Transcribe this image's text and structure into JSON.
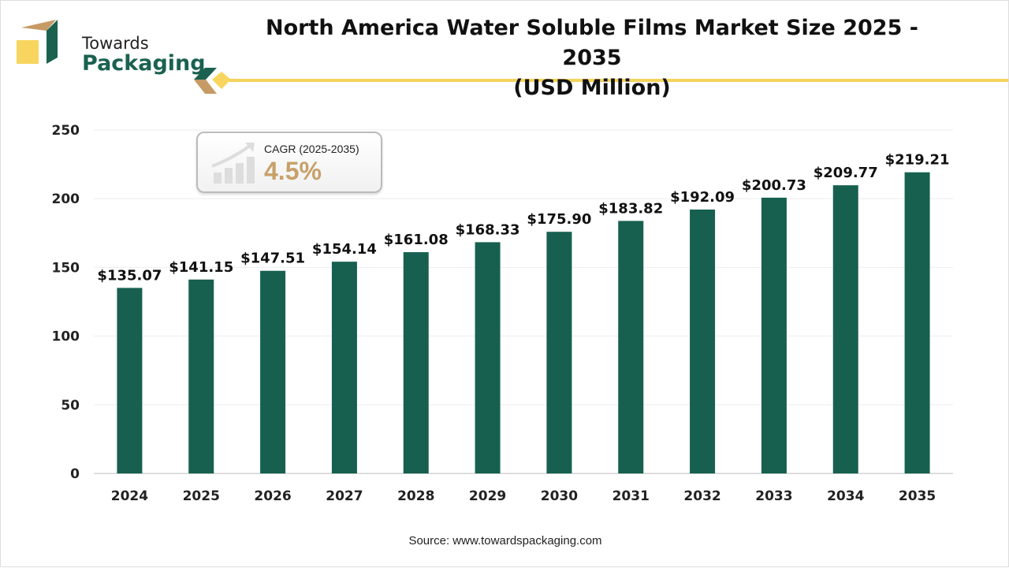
{
  "brand": {
    "line1": "Towards",
    "line2": "Packaging"
  },
  "title_line1": "North America Water Soluble Films Market Size 2025 - 2035",
  "title_line2": "(USD Million)",
  "cagr": {
    "label": "CAGR (2025-2035)",
    "value": "4.5%",
    "icon": "growth-chart-icon"
  },
  "source": "Source: www.towardspackaging.com",
  "colors": {
    "bar": "#17604f",
    "accent": "#f5d35d",
    "cagr_value": "#c8a06a"
  },
  "chart_data": {
    "type": "bar",
    "categories": [
      "2024",
      "2025",
      "2026",
      "2027",
      "2028",
      "2029",
      "2030",
      "2031",
      "2032",
      "2033",
      "2034",
      "2035"
    ],
    "values": [
      135.07,
      141.15,
      147.51,
      154.14,
      161.08,
      168.33,
      175.9,
      183.82,
      192.09,
      200.73,
      209.77,
      219.21
    ],
    "data_labels": [
      "$135.07",
      "$141.15",
      "$147.51",
      "$154.14",
      "$161.08",
      "$168.33",
      "$175.90",
      "$183.82",
      "$192.09",
      "$200.73",
      "$209.77",
      "$219.21"
    ],
    "yticks": [
      0,
      50,
      100,
      150,
      200,
      250
    ],
    "ylim": [
      0,
      250
    ],
    "grid": true,
    "legend": "none"
  }
}
